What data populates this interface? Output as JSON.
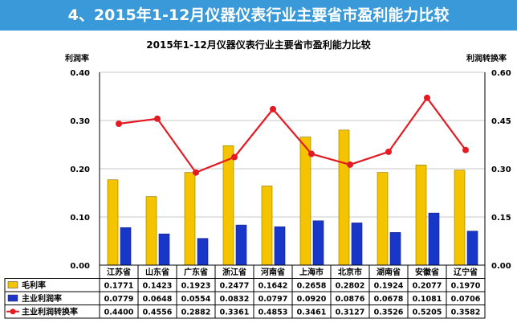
{
  "banner": {
    "title": "4、2015年1-12月仪器仪表行业主要省市盈利能力比较"
  },
  "chart_data": {
    "type": "bar",
    "title": "2015年1-12月仪器仪表行业主要省市盈利能力比较",
    "ylabel_left": "利润率",
    "ylabel_right": "利润转换率",
    "ylim_left": [
      0,
      0.4
    ],
    "ylim_right": [
      0,
      0.6
    ],
    "yticks_left": [
      "0.00",
      "0.10",
      "0.20",
      "0.30",
      "0.40"
    ],
    "yticks_right": [
      "0.00",
      "0.15",
      "0.30",
      "0.45",
      "0.60"
    ],
    "grid": true,
    "categories": [
      "江苏省",
      "山东省",
      "广东省",
      "浙江省",
      "河南省",
      "上海市",
      "北京市",
      "湖南省",
      "安徽省",
      "辽宁省"
    ],
    "series": [
      {
        "name": "毛利率",
        "type": "bar",
        "axis": "left",
        "color": "#f5c400",
        "values": [
          0.1771,
          0.1423,
          0.1923,
          0.2477,
          0.1642,
          0.2658,
          0.2802,
          0.1924,
          0.2077,
          0.197
        ],
        "labels": [
          "0.1771",
          "0.1423",
          "0.1923",
          "0.2477",
          "0.1642",
          "0.2658",
          "0.2802",
          "0.1924",
          "0.2077",
          "0.1970"
        ]
      },
      {
        "name": "主业利润率",
        "type": "bar",
        "axis": "left",
        "color": "#1a36c8",
        "values": [
          0.0779,
          0.0648,
          0.0554,
          0.0832,
          0.0797,
          0.092,
          0.0876,
          0.0678,
          0.1081,
          0.0706
        ],
        "labels": [
          "0.0779",
          "0.0648",
          "0.0554",
          "0.0832",
          "0.0797",
          "0.0920",
          "0.0876",
          "0.0678",
          "0.1081",
          "0.0706"
        ]
      },
      {
        "name": "主业利润转换率",
        "type": "line",
        "axis": "right",
        "color": "#e31b23",
        "values": [
          0.44,
          0.4556,
          0.2882,
          0.3361,
          0.4853,
          0.3461,
          0.3127,
          0.3526,
          0.5205,
          0.3582
        ],
        "labels": [
          "0.4400",
          "0.4556",
          "0.2882",
          "0.3361",
          "0.4853",
          "0.3461",
          "0.3127",
          "0.3526",
          "0.5205",
          "0.3582"
        ]
      }
    ]
  }
}
